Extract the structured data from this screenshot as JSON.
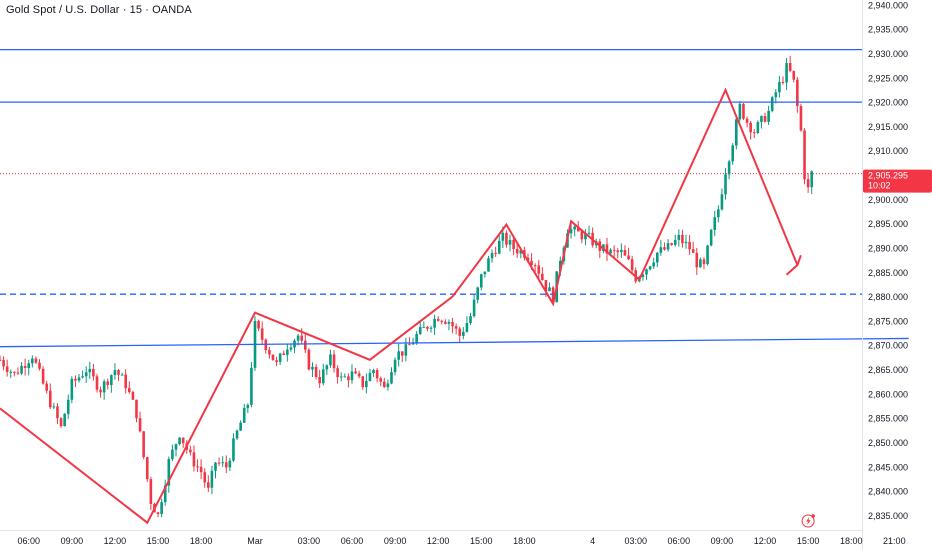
{
  "header": {
    "title": "Gold Spot / U.S. Dollar · 15 · OANDA"
  },
  "price_badge": {
    "price": "2,905.295",
    "countdown": "10:02"
  },
  "colors": {
    "up": "#089981",
    "down": "#f23645",
    "level_line": "#2962ff",
    "zigzag": "#f23645",
    "axis_text": "#131722",
    "badge": "#f23645"
  },
  "chart_data": {
    "type": "candlestick",
    "title": "Gold Spot / U.S. Dollar · 15 · OANDA",
    "ylim": [
      2832,
      2941
    ],
    "y_ticks": [
      2835,
      2840,
      2845,
      2850,
      2855,
      2860,
      2865,
      2870,
      2875,
      2880,
      2885,
      2890,
      2895,
      2900,
      2905,
      2910,
      2915,
      2920,
      2925,
      2930,
      2935,
      2940
    ],
    "y_tick_labels": [
      "2,835.000",
      "2,840.000",
      "2,845.000",
      "2,850.000",
      "2,855.000",
      "2,860.000",
      "2,865.000",
      "2,870.000",
      "2,875.000",
      "2,880.000",
      "2,885.000",
      "2,890.000",
      "2,895.000",
      "2,900.000",
      "2,905.000",
      "2,910.000",
      "2,915.000",
      "2,920.000",
      "2,925.000",
      "2,930.000",
      "2,935.000",
      "2,940.000"
    ],
    "x_range": [
      0,
      240
    ],
    "x_ticks": [
      {
        "x": 8,
        "label": "06:00"
      },
      {
        "x": 20,
        "label": "09:00"
      },
      {
        "x": 32,
        "label": "12:00"
      },
      {
        "x": 44,
        "label": "15:00"
      },
      {
        "x": 56,
        "label": "18:00"
      },
      {
        "x": 71,
        "label": "Mar"
      },
      {
        "x": 86,
        "label": "03:00"
      },
      {
        "x": 98,
        "label": "06:00"
      },
      {
        "x": 110,
        "label": "09:00"
      },
      {
        "x": 122,
        "label": "12:00"
      },
      {
        "x": 134,
        "label": "15:00"
      },
      {
        "x": 146,
        "label": "18:00"
      },
      {
        "x": 165,
        "label": "4"
      },
      {
        "x": 177,
        "label": "03:00"
      },
      {
        "x": 189,
        "label": "06:00"
      },
      {
        "x": 201,
        "label": "09:00"
      },
      {
        "x": 213,
        "label": "12:00"
      },
      {
        "x": 225,
        "label": "15:00"
      },
      {
        "x": 237,
        "label": "18:00"
      },
      {
        "x": 249,
        "label": "21:00"
      }
    ],
    "current_price": 2905.295,
    "horizontal_levels": [
      {
        "price": 2930.8,
        "style": "solid"
      },
      {
        "price": 2920.0,
        "style": "solid"
      },
      {
        "price": 2880.5,
        "style": "dashed"
      }
    ],
    "trendline": {
      "style": "solid",
      "from": {
        "x": 0,
        "y": 2869.7
      },
      "to": {
        "x": 253,
        "y": 2871.4
      }
    },
    "zigzag": [
      {
        "x": 0,
        "y": 2857.0
      },
      {
        "x": 41,
        "y": 2833.5
      },
      {
        "x": 71,
        "y": 2876.7
      },
      {
        "x": 103,
        "y": 2867.0
      },
      {
        "x": 126,
        "y": 2880.0
      },
      {
        "x": 141,
        "y": 2894.8
      },
      {
        "x": 154,
        "y": 2878.5
      },
      {
        "x": 159,
        "y": 2895.5
      },
      {
        "x": 178,
        "y": 2883.5
      },
      {
        "x": 202,
        "y": 2922.5
      },
      {
        "x": 222,
        "y": 2886.5
      }
    ],
    "arrow_head": [
      {
        "x": 219,
        "y": 2884.5
      },
      {
        "x": 222,
        "y": 2886.5
      },
      {
        "x": 223,
        "y": 2888.5
      }
    ],
    "price_path": [
      [
        0,
        2867
      ],
      [
        4,
        2864
      ],
      [
        9,
        2868
      ],
      [
        13,
        2860
      ],
      [
        17,
        2853
      ],
      [
        20,
        2862
      ],
      [
        24,
        2865
      ],
      [
        28,
        2861
      ],
      [
        32,
        2865
      ],
      [
        35,
        2862
      ],
      [
        38,
        2856
      ],
      [
        40,
        2847
      ],
      [
        42,
        2838
      ],
      [
        44,
        2835
      ],
      [
        47,
        2846
      ],
      [
        50,
        2852
      ],
      [
        53,
        2847
      ],
      [
        56,
        2844
      ],
      [
        58,
        2840
      ],
      [
        60,
        2846
      ],
      [
        63,
        2845
      ],
      [
        66,
        2852
      ],
      [
        69,
        2858
      ],
      [
        71,
        2874
      ],
      [
        74,
        2870
      ],
      [
        77,
        2866
      ],
      [
        80,
        2870
      ],
      [
        83,
        2872
      ],
      [
        86,
        2866
      ],
      [
        89,
        2863
      ],
      [
        92,
        2867
      ],
      [
        95,
        2863
      ],
      [
        98,
        2864
      ],
      [
        101,
        2862
      ],
      [
        104,
        2865
      ],
      [
        107,
        2861
      ],
      [
        110,
        2868
      ],
      [
        113,
        2869
      ],
      [
        116,
        2872
      ],
      [
        119,
        2874
      ],
      [
        122,
        2876
      ],
      [
        125,
        2875
      ],
      [
        128,
        2872
      ],
      [
        131,
        2876
      ],
      [
        134,
        2884
      ],
      [
        137,
        2889
      ],
      [
        140,
        2892
      ],
      [
        143,
        2890
      ],
      [
        146,
        2889
      ],
      [
        149,
        2887
      ],
      [
        152,
        2882
      ],
      [
        154,
        2880
      ],
      [
        156,
        2888
      ],
      [
        158,
        2894
      ],
      [
        161,
        2893
      ],
      [
        164,
        2892
      ],
      [
        167,
        2890
      ],
      [
        170,
        2889
      ],
      [
        173,
        2889
      ],
      [
        175,
        2887
      ],
      [
        177,
        2884
      ],
      [
        180,
        2886
      ],
      [
        183,
        2889
      ],
      [
        186,
        2890
      ],
      [
        189,
        2892
      ],
      [
        192,
        2890
      ],
      [
        194,
        2887
      ],
      [
        196,
        2886
      ],
      [
        198,
        2893
      ],
      [
        200,
        2898
      ],
      [
        202,
        2906
      ],
      [
        204,
        2912
      ],
      [
        206,
        2919
      ],
      [
        208,
        2916
      ],
      [
        210,
        2914
      ],
      [
        212,
        2916
      ],
      [
        214,
        2918
      ],
      [
        216,
        2922
      ],
      [
        218,
        2925
      ],
      [
        219,
        2927
      ],
      [
        220,
        2926
      ],
      [
        221,
        2924
      ],
      [
        222,
        2919
      ],
      [
        223,
        2914
      ],
      [
        224,
        2905
      ],
      [
        225,
        2902
      ],
      [
        226,
        2905.3
      ]
    ],
    "lightning_icon_x": 225
  }
}
